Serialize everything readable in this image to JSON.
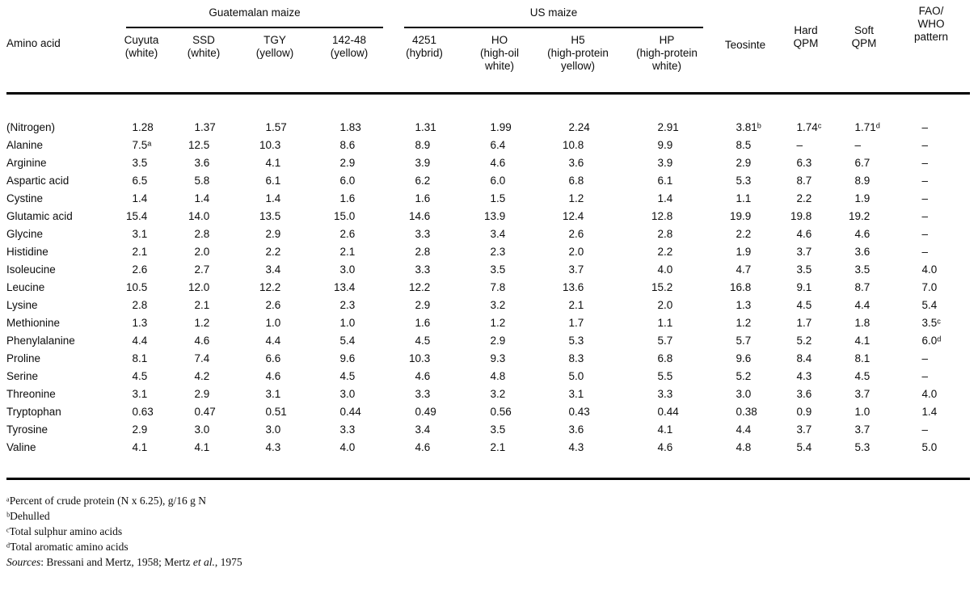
{
  "chart_data": {
    "type": "table",
    "row_header": "Amino acid",
    "groups": [
      {
        "label": "Guatemalan maize",
        "span": 4
      },
      {
        "label": "US maize",
        "span": 4
      }
    ],
    "columns": [
      {
        "name": "Cuyuta",
        "sub": "(white)"
      },
      {
        "name": "SSD",
        "sub": "(white)"
      },
      {
        "name": "TGY",
        "sub": "(yellow)"
      },
      {
        "name": "142-48",
        "sub": "(yellow)"
      },
      {
        "name": "4251",
        "sub": "(hybrid)"
      },
      {
        "name": "HO",
        "sub": "(high-oil\nwhite)"
      },
      {
        "name": "H5",
        "sub": "(high-protein\nyellow)"
      },
      {
        "name": "HP",
        "sub": "(high-protein\nwhite)"
      }
    ],
    "solo_columns": [
      {
        "label": "Teosinte"
      },
      {
        "label": "Hard\nQPM"
      },
      {
        "label": "Soft\nQPM"
      },
      {
        "label": "FAO/\nWHO\npattern"
      }
    ],
    "rows": [
      {
        "label": "(Nitrogen)",
        "values": [
          "1.28",
          "1.37",
          "1.57",
          "1.83",
          "1.31",
          "1.99",
          "2.24",
          "2.91",
          "3.81ᵇ",
          "1.74ᶜ",
          "1.71ᵈ",
          "–"
        ]
      },
      {
        "label": "Alanine",
        "values": [
          "7.5ᵃ",
          "12.5",
          "10.3",
          "8.6",
          "8.9",
          "6.4",
          "10.8",
          "9.9",
          "8.5",
          "–",
          "–",
          "–"
        ]
      },
      {
        "label": "Arginine",
        "values": [
          "3.5",
          "3.6",
          "4.1",
          "2.9",
          "3.9",
          "4.6",
          "3.6",
          "3.9",
          "2.9",
          "6.3",
          "6.7",
          "–"
        ]
      },
      {
        "label": "Aspartic acid",
        "values": [
          "6.5",
          "5.8",
          "6.1",
          "6.0",
          "6.2",
          "6.0",
          "6.8",
          "6.1",
          "5.3",
          "8.7",
          "8.9",
          "–"
        ]
      },
      {
        "label": "Cystine",
        "values": [
          "1.4",
          "1.4",
          "1.4",
          "1.6",
          "1.6",
          "1.5",
          "1.2",
          "1.4",
          "1.1",
          "2.2",
          "1.9",
          "–"
        ]
      },
      {
        "label": "Glutamic acid",
        "values": [
          "15.4",
          "14.0",
          "13.5",
          "15.0",
          "14.6",
          "13.9",
          "12.4",
          "12.8",
          "19.9",
          "19.8",
          "19.2",
          "–"
        ]
      },
      {
        "label": "Glycine",
        "values": [
          "3.1",
          "2.8",
          "2.9",
          "2.6",
          "3.3",
          "3.4",
          "2.6",
          "2.8",
          "2.2",
          "4.6",
          "4.6",
          "–"
        ]
      },
      {
        "label": "Histidine",
        "values": [
          "2.1",
          "2.0",
          "2.2",
          "2.1",
          "2.8",
          "2.3",
          "2.0",
          "2.2",
          "1.9",
          "3.7",
          "3.6",
          "–"
        ]
      },
      {
        "label": "Isoleucine",
        "values": [
          "2.6",
          "2.7",
          "3.4",
          "3.0",
          "3.3",
          "3.5",
          "3.7",
          "4.0",
          "4.7",
          "3.5",
          "3.5",
          "4.0"
        ]
      },
      {
        "label": "Leucine",
        "values": [
          "10.5",
          "12.0",
          "12.2",
          "13.4",
          "12.2",
          "7.8",
          "13.6",
          "15.2",
          "16.8",
          "9.1",
          "8.7",
          "7.0"
        ]
      },
      {
        "label": "Lysine",
        "values": [
          "2.8",
          "2.1",
          "2.6",
          "2.3",
          "2.9",
          "3.2",
          "2.1",
          "2.0",
          "1.3",
          "4.5",
          "4.4",
          "5.4"
        ]
      },
      {
        "label": "Methionine",
        "values": [
          "1.3",
          "1.2",
          "1.0",
          "1.0",
          "1.6",
          "1.2",
          "1.7",
          "1.1",
          "1.2",
          "1.7",
          "1.8",
          "3.5ᶜ"
        ]
      },
      {
        "label": "Phenylalanine",
        "values": [
          "4.4",
          "4.6",
          "4.4",
          "5.4",
          "4.5",
          "2.9",
          "5.3",
          "5.7",
          "5.7",
          "5.2",
          "4.1",
          "6.0ᵈ"
        ]
      },
      {
        "label": "Proline",
        "values": [
          "8.1",
          "7.4",
          "6.6",
          "9.6",
          "10.3",
          "9.3",
          "8.3",
          "6.8",
          "9.6",
          "8.4",
          "8.1",
          "–"
        ]
      },
      {
        "label": "Serine",
        "values": [
          "4.5",
          "4.2",
          "4.6",
          "4.5",
          "4.6",
          "4.8",
          "5.0",
          "5.5",
          "5.2",
          "4.3",
          "4.5",
          "–"
        ]
      },
      {
        "label": "Threonine",
        "values": [
          "3.1",
          "2.9",
          "3.1",
          "3.0",
          "3.3",
          "3.2",
          "3.1",
          "3.3",
          "3.0",
          "3.6",
          "3.7",
          "4.0"
        ]
      },
      {
        "label": "Tryptophan",
        "values": [
          "0.63",
          "0.47",
          "0.51",
          "0.44",
          "0.49",
          "0.56",
          "0.43",
          "0.44",
          "0.38",
          "0.9",
          "1.0",
          "1.4"
        ]
      },
      {
        "label": "Tyrosine",
        "values": [
          "2.9",
          "3.0",
          "3.0",
          "3.3",
          "3.4",
          "3.5",
          "3.6",
          "4.1",
          "4.4",
          "3.7",
          "3.7",
          "–"
        ]
      },
      {
        "label": "Valine",
        "values": [
          "4.1",
          "4.1",
          "4.3",
          "4.0",
          "4.6",
          "2.1",
          "4.3",
          "4.6",
          "4.8",
          "5.4",
          "5.3",
          "5.0"
        ]
      }
    ]
  },
  "footnotes": {
    "items": [
      "ᵃPercent of crude protein (N x 6.25), g/16 g N",
      "ᵇDehulled",
      "ᶜTotal sulphur amino acids",
      "ᵈTotal aromatic amino acids"
    ],
    "sources_label": "Sources",
    "sources_part1": ": Bressani and Mertz, 1958; Mertz ",
    "sources_etal": "et al.",
    "sources_part2": ", 1975"
  }
}
